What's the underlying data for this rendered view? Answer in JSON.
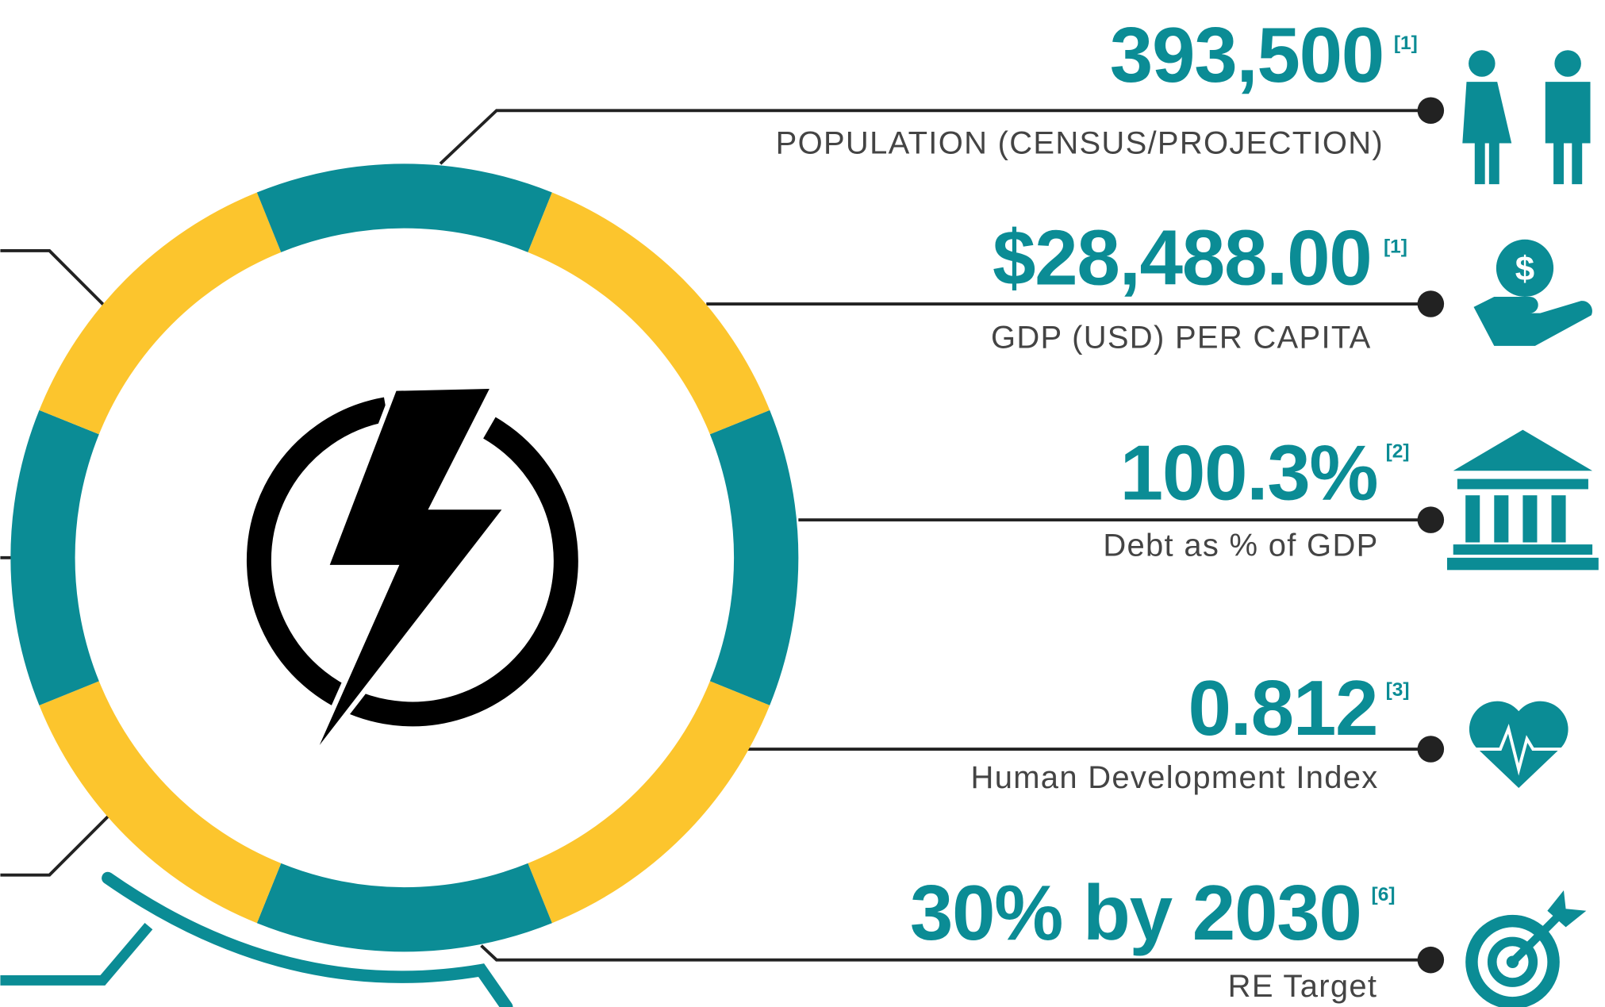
{
  "items": [
    {
      "value": "393,500",
      "ref": "[1]",
      "label": "POPULATION (CENSUS/PROJECTION)"
    },
    {
      "value": "$28,488.00",
      "ref": "[1]",
      "label": "GDP (USD) PER CAPITA"
    },
    {
      "value": "100.3%",
      "ref": "[2]",
      "label": "Debt as % of GDP"
    },
    {
      "value": "0.812",
      "ref": "[3]",
      "label": "Human Development Index"
    },
    {
      "value": "30% by 2030",
      "ref": "[6]",
      "label": "RE Target"
    }
  ]
}
